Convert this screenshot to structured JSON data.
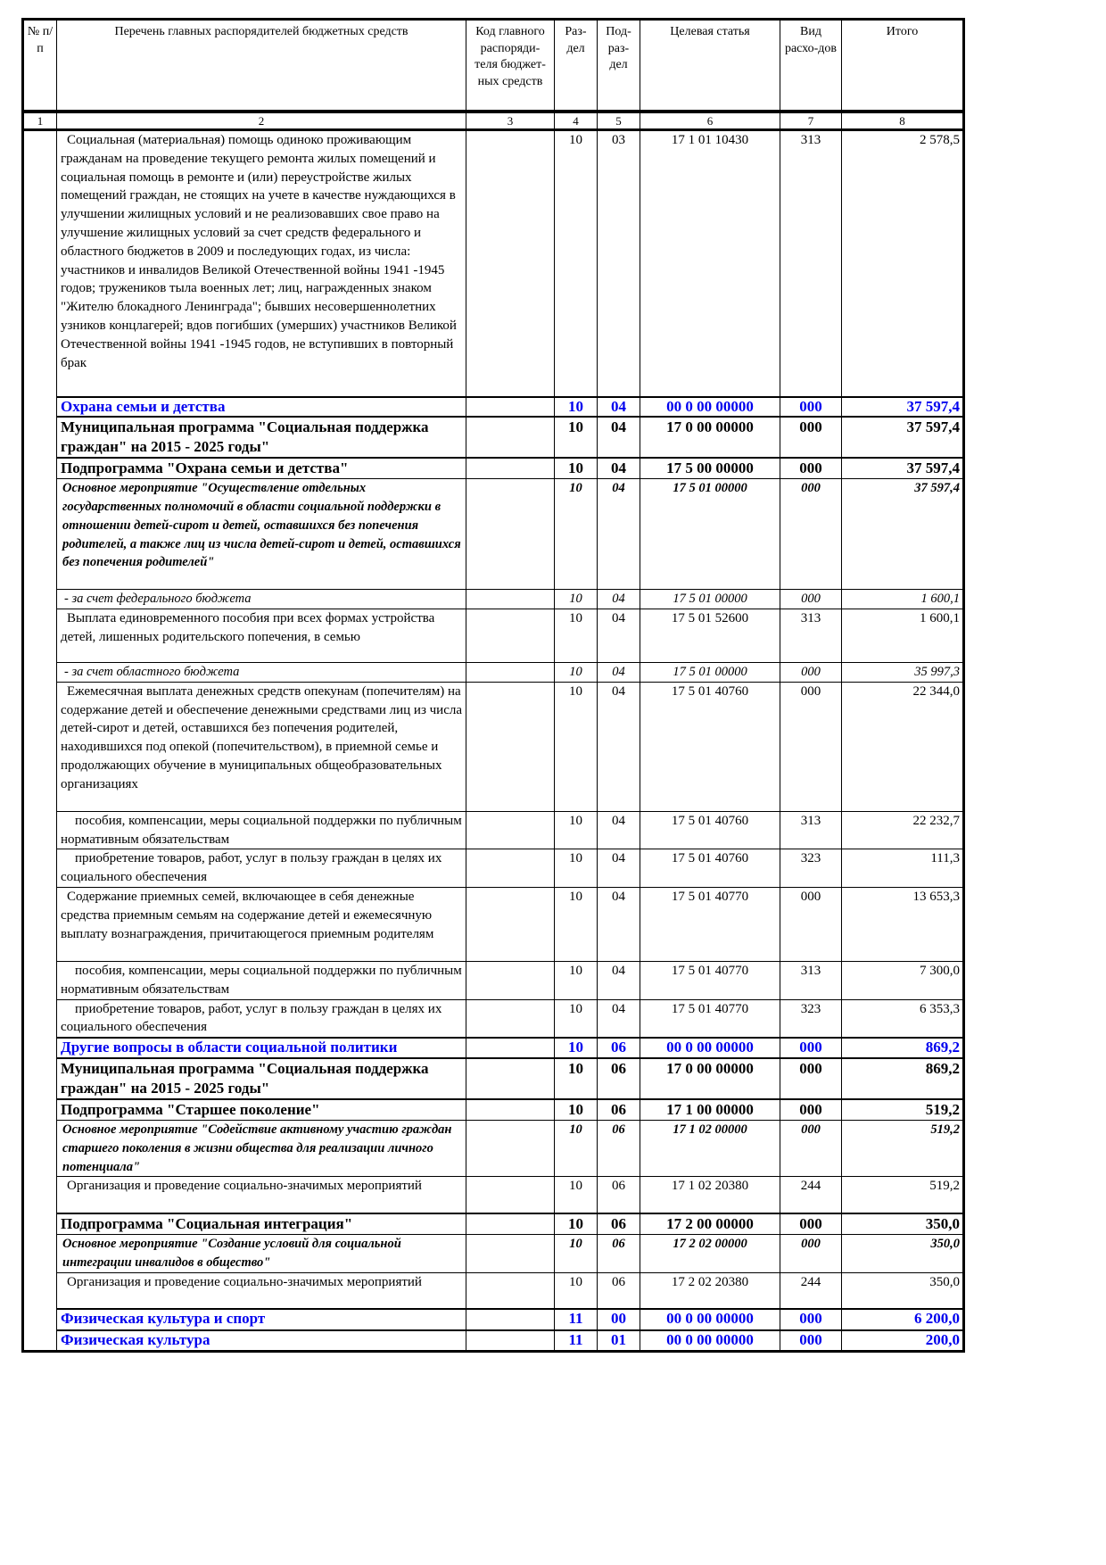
{
  "header": {
    "col1": "№ п/п",
    "col2": "Перечень главных распорядителей бюджетных средств",
    "col3": "Код главного распоряди-теля бюджет-ных средств",
    "col4": "Раз-дел",
    "col5": "Под-раз-дел",
    "col6": "Целевая статья",
    "col7": "Вид расхо-дов",
    "col8": "Итого"
  },
  "column_numbers": [
    "1",
    "2",
    "3",
    "4",
    "5",
    "6",
    "7",
    "8"
  ],
  "rows": [
    {
      "style": "norm",
      "h": 299,
      "name": "Социальная (материальная) помощь одиноко проживающим гражданам на проведение текущего ремонта жилых помещений и социальная помощь в ремонте и (или) переустройстве жилых помещений граждан, не стоящих на учете в качестве нуждающихся в улучшении жилищных условий и не реализовавших свое право на улучшение жилищных условий за счет средств федерального и областного бюджетов в 2009 и последующих годах, из числа: участников и инвалидов Великой Отечественной войны 1941 -1945 годов; тружеников тыла военных лет; лиц, награжденных знаком \"Жителю блокадного Ленинграда\"; бывших несовершеннолетних узников концлагерей; вдов погибших (умерших) участников Великой Отечественной войны 1941 -1945 годов, не вступивших в повторный брак",
      "razdel": "10",
      "podrazdel": "03",
      "cs": "17 1 01 10430",
      "vr": "313",
      "total": "2 578,5"
    },
    {
      "style": "blue",
      "h": 22,
      "name": "Охрана семьи и детства",
      "razdel": "10",
      "podrazdel": "04",
      "cs": "00 0 00 00000",
      "vr": "000",
      "total": "37 597,4"
    },
    {
      "style": "bold",
      "h": 42,
      "name": "Муниципальная программа \"Социальная поддержка граждан\" на 2015 - 2025 годы\"",
      "razdel": "10",
      "podrazdel": "04",
      "cs": "17 0 00 00000",
      "vr": "000",
      "total": "37 597,4"
    },
    {
      "style": "bold",
      "h": 20,
      "name": "Подпрограмма \"Охрана семьи и детства\"",
      "razdel": "10",
      "podrazdel": "04",
      "cs": "17 5 00 00000",
      "vr": "000",
      "total": "37 597,4"
    },
    {
      "style": "ital",
      "h": 124,
      "name": "Основное мероприятие \"Осуществление отдельных государственных полномочий в области социальной поддержки в отношении детей-сирот и детей, оставшихся без попечения родителей, а также лиц из числа детей-сирот и детей, оставшихся без попечения родителей\"",
      "razdel": "10",
      "podrazdel": "04",
      "cs": "17 5 01 00000",
      "vr": "000",
      "total": "37 597,4"
    },
    {
      "style": "sub",
      "h": 21,
      "name": "- за счет федерального бюджета",
      "razdel": "10",
      "podrazdel": "04",
      "cs": "17 5 01 00000",
      "vr": "000",
      "total": "1 600,1"
    },
    {
      "style": "norm",
      "h": 60,
      "name": "Выплата единовременного пособия при всех формах устройства детей, лишенных родительского попечения, в семью",
      "razdel": "10",
      "podrazdel": "04",
      "cs": "17 5 01 52600",
      "vr": "313",
      "total": "1 600,1"
    },
    {
      "style": "sub",
      "h": 21,
      "name": "- за счет областного бюджета",
      "razdel": "10",
      "podrazdel": "04",
      "cs": "17 5 01 00000",
      "vr": "000",
      "total": "35 997,3"
    },
    {
      "style": "norm",
      "h": 145,
      "name": "Ежемесячная выплата денежных средств опекунам (попечителям) на содержание детей и обеспечение денежными средствами лиц из числа детей-сирот и детей, оставшихся без попечения родителей, находившихся под опекой (попечительством), в приемной семье и продолжающих обучение в муниципальных общеобразовательных организациях",
      "razdel": "10",
      "podrazdel": "04",
      "cs": "17 5 01 40760",
      "vr": "000",
      "total": "22 344,0"
    },
    {
      "style": "ind",
      "h": 41,
      "name": "пособия, компенсации, меры социальной поддержки по публичным нормативным обязательствам",
      "razdel": "10",
      "podrazdel": "04",
      "cs": "17 5 01 40760",
      "vr": "313",
      "total": "22 232,7"
    },
    {
      "style": "ind",
      "h": 41,
      "name": "приобретение товаров, работ, услуг в пользу граждан в целях их социального обеспечения",
      "razdel": "10",
      "podrazdel": "04",
      "cs": "17 5 01 40760",
      "vr": "323",
      "total": "111,3"
    },
    {
      "style": "norm",
      "h": 83,
      "name": "Содержание приемных семей, включающее в себя денежные средства приемным семьям на содержание детей и ежемесячную выплату вознаграждения, причитающегося приемным родителям",
      "razdel": "10",
      "podrazdel": "04",
      "cs": "17 5 01 40770",
      "vr": "000",
      "total": "13 653,3"
    },
    {
      "style": "ind",
      "h": 41,
      "name": "пособия, компенсации, меры социальной поддержки по публичным нормативным обязательствам",
      "razdel": "10",
      "podrazdel": "04",
      "cs": "17 5 01 40770",
      "vr": "313",
      "total": "7 300,0"
    },
    {
      "style": "ind",
      "h": 41,
      "name": "приобретение товаров, работ, услуг в пользу граждан в целях их социального обеспечения",
      "razdel": "10",
      "podrazdel": "04",
      "cs": "17 5 01 40770",
      "vr": "323",
      "total": "6 353,3"
    },
    {
      "style": "blue",
      "h": 22,
      "name": "Другие вопросы в области социальной политики",
      "razdel": "10",
      "podrazdel": "06",
      "cs": "00 0 00 00000",
      "vr": "000",
      "total": "869,2"
    },
    {
      "style": "bold",
      "h": 42,
      "name": "Муниципальная программа \"Социальная поддержка граждан\" на 2015 - 2025 годы\"",
      "razdel": "10",
      "podrazdel": "06",
      "cs": "17 0 00 00000",
      "vr": "000",
      "total": "869,2"
    },
    {
      "style": "bold",
      "h": 20,
      "name": "Подпрограмма \"Старшее поколение\"",
      "razdel": "10",
      "podrazdel": "06",
      "cs": "17 1 00 00000",
      "vr": "000",
      "total": "519,2"
    },
    {
      "style": "ital",
      "h": 62,
      "name": "Основное мероприятие \"Содействие активному участию граждан старшего поколения в жизни общества для реализации личного потенциала\"",
      "razdel": "10",
      "podrazdel": "06",
      "cs": "17 1 02 00000",
      "vr": "000",
      "total": "519,2"
    },
    {
      "style": "norm",
      "h": 41,
      "name": "Организация и проведение социально-значимых мероприятий",
      "razdel": "10",
      "podrazdel": "06",
      "cs": "17 1 02 20380",
      "vr": "244",
      "total": "519,2"
    },
    {
      "style": "bold",
      "h": 20,
      "name": "Подпрограмма \"Социальная интеграция\"",
      "razdel": "10",
      "podrazdel": "06",
      "cs": "17 2 00 00000",
      "vr": "000",
      "total": "350,0"
    },
    {
      "style": "ital",
      "h": 41,
      "name": "Основное мероприятие \"Создание условий для социальной интеграции инвалидов в общество\"",
      "razdel": "10",
      "podrazdel": "06",
      "cs": "17 2 02 00000",
      "vr": "000",
      "total": "350,0"
    },
    {
      "style": "norm",
      "h": 41,
      "name": "Организация и проведение социально-значимых мероприятий",
      "razdel": "10",
      "podrazdel": "06",
      "cs": "17 2 02 20380",
      "vr": "244",
      "total": "350,0"
    },
    {
      "style": "blue",
      "h": 24,
      "name": "Физическая культура и спорт",
      "razdel": "11",
      "podrazdel": "00",
      "cs": "00 0 00 00000",
      "vr": "000",
      "total": "6 200,0"
    },
    {
      "style": "blue",
      "h": 21,
      "name": "Физическая культура",
      "razdel": "11",
      "podrazdel": "01",
      "cs": "00 0 00 00000",
      "vr": "000",
      "total": "200,0"
    }
  ]
}
